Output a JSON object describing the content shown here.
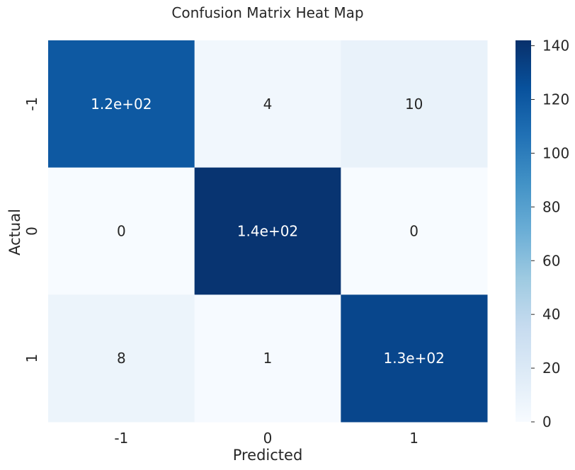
{
  "chart_data": {
    "type": "heatmap",
    "title": "Confusion Matrix Heat Map",
    "xlabel": "Predicted",
    "ylabel": "Actual",
    "x_categories": [
      "-1",
      "0",
      "1"
    ],
    "y_categories": [
      "-1",
      "0",
      "1"
    ],
    "values": [
      [
        120,
        4,
        10
      ],
      [
        0,
        140,
        0
      ],
      [
        8,
        1,
        130
      ]
    ],
    "annotations": [
      [
        "1.2e+02",
        "4",
        "10"
      ],
      [
        "0",
        "1.4e+02",
        "0"
      ],
      [
        "8",
        "1",
        "1.3e+02"
      ]
    ],
    "colorbar": {
      "min": 0,
      "max": 142,
      "ticks": [
        "0",
        "20",
        "40",
        "60",
        "80",
        "100",
        "120",
        "140"
      ]
    },
    "colormap": "Blues",
    "colors": {
      "low": "#f7fbff",
      "high": "#08306b",
      "dark_text": "#262626",
      "light_text": "#ffffff"
    }
  }
}
